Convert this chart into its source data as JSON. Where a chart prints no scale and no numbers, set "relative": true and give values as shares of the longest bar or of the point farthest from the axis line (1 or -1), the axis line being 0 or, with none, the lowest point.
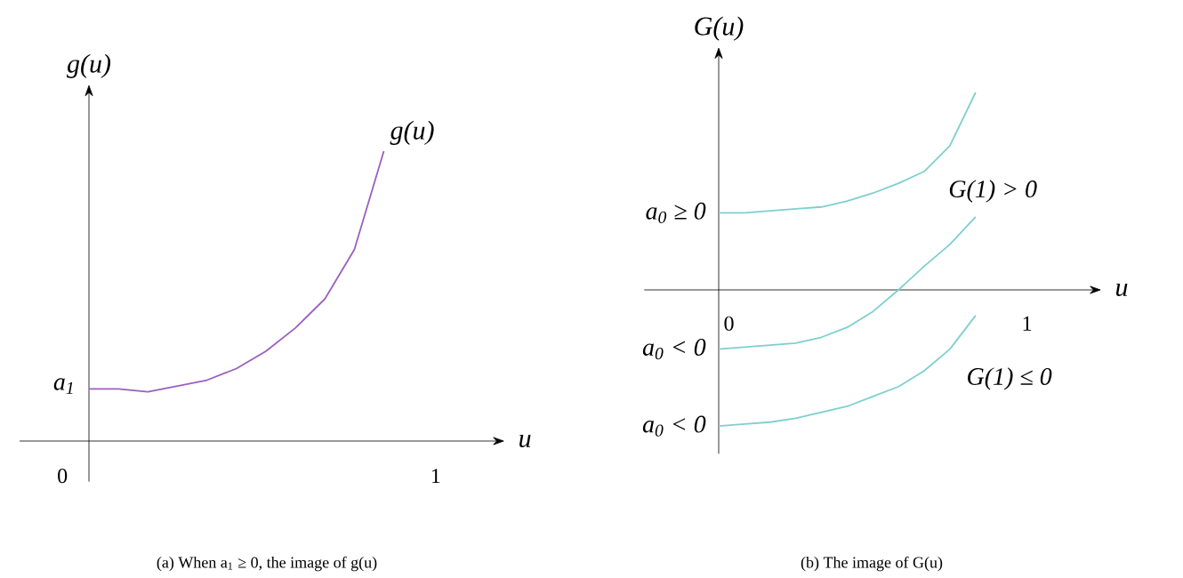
{
  "chart_data": [
    {
      "type": "line",
      "relative": true,
      "title": "(a) When a$_{1}$ ≥ 0, the image of g(u)",
      "xlabel": "u",
      "ylabel": "g(u)",
      "categories": [
        null,
        null,
        null,
        null,
        null,
        null,
        null,
        null,
        null,
        null,
        null
      ],
      "series": [
        {
          "name": "g(u)",
          "color": "#9b5fc0",
          "values": [
            0.18,
            0.18,
            0.17,
            0.19,
            0.21,
            0.25,
            0.31,
            0.39,
            0.49,
            0.66,
            1.0
          ]
        }
      ],
      "annotations": [
        "a$_{1}$",
        "0",
        "1"
      ]
    },
    {
      "type": "line",
      "relative": true,
      "title": "(b) The image of G(u)",
      "xlabel": "u",
      "ylabel": "G(u)",
      "categories": [
        null,
        null,
        null,
        null,
        null,
        null,
        null,
        null,
        null,
        null,
        null
      ],
      "series": [
        {
          "color": "#7ecfcf",
          "values": [
            0.39,
            0.39,
            0.4,
            0.41,
            0.42,
            0.45,
            0.49,
            0.54,
            0.6,
            0.73,
            1.0
          ]
        },
        {
          "color": "#7ecfcf",
          "values": [
            -0.3,
            -0.29,
            -0.28,
            -0.27,
            -0.24,
            -0.19,
            -0.11,
            0,
            0.12,
            0.23,
            0.37
          ]
        },
        {
          "color": "#7ecfcf",
          "values": [
            -0.69,
            -0.68,
            -0.67,
            -0.65,
            -0.62,
            -0.59,
            -0.54,
            -0.49,
            -0.41,
            -0.3,
            -0.13
          ]
        }
      ],
      "annotations": [
        "a$_{0}$ ≥ 0",
        "a$_{0}$ < 0",
        "a$_{0}$ < 0",
        "0",
        "1",
        "G(1) > 0",
        "G(1) ≤ 0"
      ]
    }
  ]
}
